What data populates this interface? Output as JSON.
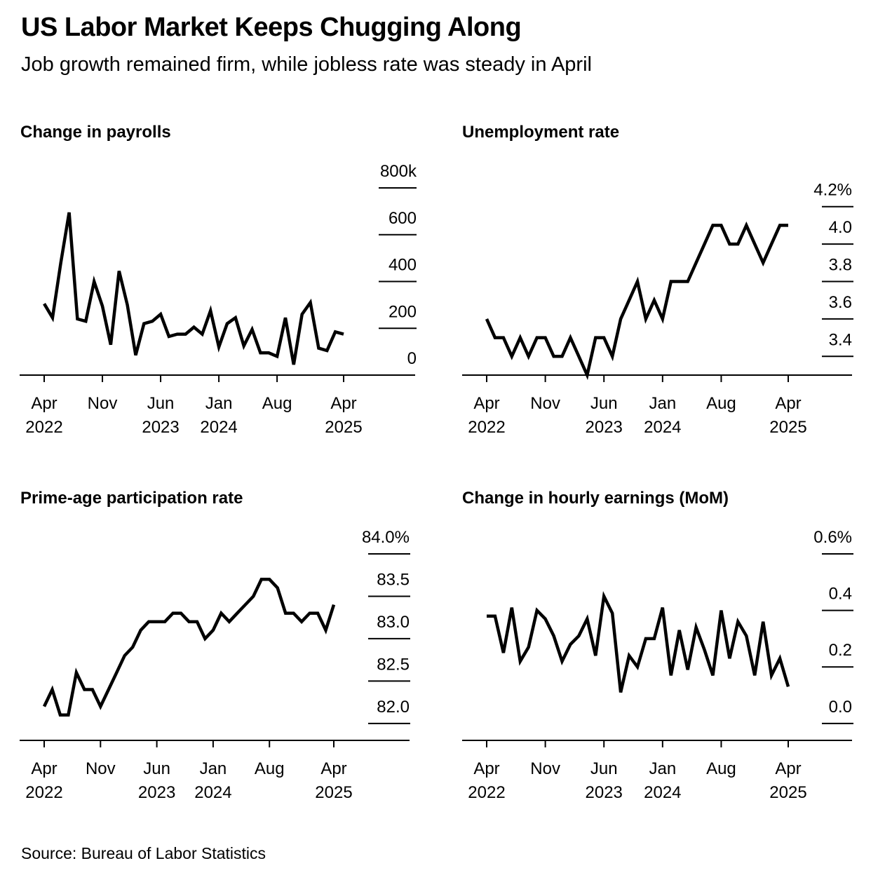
{
  "header": {
    "title": "US Labor Market Keeps Chugging Along",
    "subtitle": "Job growth remained firm, while jobless rate was steady in April"
  },
  "footer": {
    "source": "Source: Bureau of Labor Statistics"
  },
  "colors": {
    "line": "#000000",
    "background": "#ffffff"
  },
  "chart_data": [
    {
      "type": "line",
      "title": "Change in payrolls",
      "x_start": "2022-04",
      "x_labels": [
        {
          "month": "2022-04",
          "line1": "Apr",
          "line2": "2022"
        },
        {
          "month": "2022-11",
          "line1": "Nov",
          "line2": ""
        },
        {
          "month": "2023-06",
          "line1": "Jun",
          "line2": "2023"
        },
        {
          "month": "2024-01",
          "line1": "Jan",
          "line2": "2024"
        },
        {
          "month": "2024-08",
          "line1": "Aug",
          "line2": ""
        },
        {
          "month": "2025-04",
          "line1": "Apr",
          "line2": "2025"
        }
      ],
      "ylim": [
        0,
        800
      ],
      "yticks": [
        {
          "value": 800,
          "label": "800k"
        },
        {
          "value": 600,
          "label": "600"
        },
        {
          "value": 400,
          "label": "400"
        },
        {
          "value": 200,
          "label": "200"
        },
        {
          "value": 0,
          "label": "0"
        }
      ],
      "series": [
        {
          "values": [
            305,
            245,
            480,
            695,
            240,
            230,
            400,
            295,
            130,
            445,
            300,
            85,
            220,
            230,
            260,
            165,
            175,
            175,
            205,
            175,
            275,
            120,
            220,
            245,
            125,
            195,
            95,
            95,
            80,
            245,
            45,
            260,
            310,
            115,
            105,
            185,
            175
          ]
        }
      ]
    },
    {
      "type": "line",
      "title": "Unemployment rate",
      "x_start": "2022-04",
      "x_labels": [
        {
          "month": "2022-04",
          "line1": "Apr",
          "line2": "2022"
        },
        {
          "month": "2022-11",
          "line1": "Nov",
          "line2": ""
        },
        {
          "month": "2023-06",
          "line1": "Jun",
          "line2": "2023"
        },
        {
          "month": "2024-01",
          "line1": "Jan",
          "line2": "2024"
        },
        {
          "month": "2024-08",
          "line1": "Aug",
          "line2": ""
        },
        {
          "month": "2025-04",
          "line1": "Apr",
          "line2": "2025"
        }
      ],
      "ylim": [
        3.3,
        4.3
      ],
      "yticks": [
        {
          "value": 4.2,
          "label": "4.2%"
        },
        {
          "value": 4.0,
          "label": "4.0"
        },
        {
          "value": 3.8,
          "label": "3.8"
        },
        {
          "value": 3.6,
          "label": "3.6"
        },
        {
          "value": 3.4,
          "label": "3.4"
        }
      ],
      "series": [
        {
          "values": [
            3.6,
            3.5,
            3.5,
            3.4,
            3.5,
            3.4,
            3.5,
            3.5,
            3.4,
            3.4,
            3.5,
            3.4,
            3.3,
            3.5,
            3.5,
            3.4,
            3.6,
            3.7,
            3.8,
            3.6,
            3.7,
            3.6,
            3.8,
            3.8,
            3.8,
            3.9,
            4.0,
            4.1,
            4.1,
            4.0,
            4.0,
            4.1,
            4.0,
            3.9,
            4.0,
            4.1,
            4.1
          ]
        }
      ]
    },
    {
      "type": "line",
      "title": "Prime-age participation rate",
      "x_start": "2022-04",
      "x_labels": [
        {
          "month": "2022-04",
          "line1": "Apr",
          "line2": "2022"
        },
        {
          "month": "2022-11",
          "line1": "Nov",
          "line2": ""
        },
        {
          "month": "2023-06",
          "line1": "Jun",
          "line2": "2023"
        },
        {
          "month": "2024-01",
          "line1": "Jan",
          "line2": "2024"
        },
        {
          "month": "2024-08",
          "line1": "Aug",
          "line2": ""
        },
        {
          "month": "2025-04",
          "line1": "Apr",
          "line2": "2025"
        }
      ],
      "ylim": [
        81.8,
        84.0
      ],
      "yticks": [
        {
          "value": 84.0,
          "label": "84.0%"
        },
        {
          "value": 83.5,
          "label": "83.5"
        },
        {
          "value": 83.0,
          "label": "83.0"
        },
        {
          "value": 82.5,
          "label": "82.5"
        },
        {
          "value": 82.0,
          "label": "82.0"
        }
      ],
      "series": [
        {
          "values": [
            82.2,
            82.4,
            82.1,
            82.1,
            82.6,
            82.4,
            82.4,
            82.2,
            82.4,
            82.6,
            82.8,
            82.9,
            83.1,
            83.2,
            83.2,
            83.2,
            83.3,
            83.3,
            83.2,
            83.2,
            83.0,
            83.1,
            83.3,
            83.2,
            83.3,
            83.4,
            83.5,
            83.7,
            83.7,
            83.6,
            83.3,
            83.3,
            83.2,
            83.3,
            83.3,
            83.1,
            83.4
          ]
        }
      ]
    },
    {
      "type": "line",
      "title": "Change in hourly earnings (MoM)",
      "x_start": "2022-04",
      "x_labels": [
        {
          "month": "2022-04",
          "line1": "Apr",
          "line2": "2022"
        },
        {
          "month": "2022-11",
          "line1": "Nov",
          "line2": ""
        },
        {
          "month": "2023-06",
          "line1": "Jun",
          "line2": "2023"
        },
        {
          "month": "2024-01",
          "line1": "Jan",
          "line2": "2024"
        },
        {
          "month": "2024-08",
          "line1": "Aug",
          "line2": ""
        },
        {
          "month": "2025-04",
          "line1": "Apr",
          "line2": "2025"
        }
      ],
      "ylim": [
        -0.06,
        0.6
      ],
      "yticks": [
        {
          "value": 0.6,
          "label": "0.6%"
        },
        {
          "value": 0.4,
          "label": "0.4"
        },
        {
          "value": 0.2,
          "label": "0.2"
        },
        {
          "value": 0.0,
          "label": "0.0"
        }
      ],
      "series": [
        {
          "values": [
            0.38,
            0.38,
            0.25,
            0.41,
            0.22,
            0.27,
            0.4,
            0.37,
            0.31,
            0.22,
            0.28,
            0.31,
            0.37,
            0.24,
            0.45,
            0.39,
            0.11,
            0.24,
            0.2,
            0.3,
            0.3,
            0.41,
            0.17,
            0.33,
            0.19,
            0.34,
            0.26,
            0.17,
            0.4,
            0.23,
            0.36,
            0.31,
            0.17,
            0.36,
            0.17,
            0.23,
            0.13
          ]
        }
      ]
    }
  ]
}
